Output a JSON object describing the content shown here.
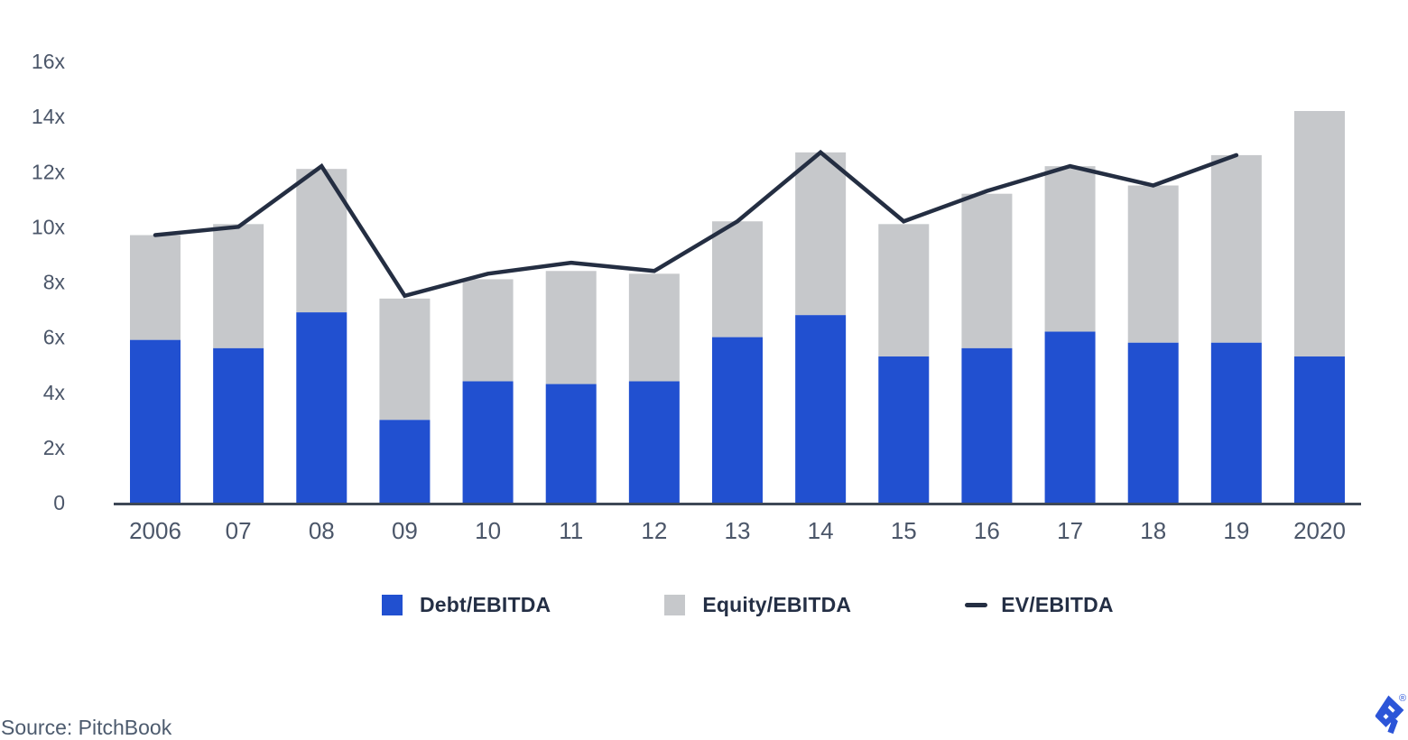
{
  "chart_data": {
    "type": "bar",
    "subtype": "stacked-bar-with-line-overlay",
    "title": "",
    "xlabel": "",
    "ylabel": "",
    "categories": [
      "2006",
      "07",
      "08",
      "09",
      "10",
      "11",
      "12",
      "13",
      "14",
      "15",
      "16",
      "17",
      "18",
      "19",
      "2020"
    ],
    "series": [
      {
        "name": "Debt/EBITDA",
        "type": "bar",
        "stacked": true,
        "color": "#2150d0",
        "values": [
          5.9,
          5.6,
          6.9,
          3.0,
          4.4,
          4.3,
          4.4,
          6.0,
          6.8,
          5.3,
          5.6,
          6.2,
          5.8,
          5.8,
          5.3
        ]
      },
      {
        "name": "Equity/EBITDA",
        "type": "bar",
        "stacked": true,
        "color": "#c6c8cb",
        "values": [
          3.8,
          4.5,
          5.2,
          4.4,
          3.7,
          4.1,
          3.9,
          4.2,
          5.9,
          4.8,
          5.6,
          6.0,
          5.7,
          6.8,
          8.9
        ]
      },
      {
        "name": "EV/EBITDA",
        "type": "line",
        "color": "#242e42",
        "values": [
          9.7,
          10.0,
          12.2,
          7.5,
          8.3,
          8.7,
          8.4,
          10.2,
          12.7,
          10.2,
          11.3,
          12.2,
          11.5,
          12.6,
          null
        ]
      }
    ],
    "stacked_totals": [
      9.7,
      10.1,
      12.1,
      7.4,
      8.1,
      8.4,
      8.3,
      10.2,
      12.7,
      10.1,
      11.2,
      12.2,
      11.5,
      12.6,
      14.2
    ],
    "ylim": [
      0,
      16
    ],
    "y_ticks": [
      "0",
      "2x",
      "4x",
      "6x",
      "8x",
      "10x",
      "12x",
      "14x",
      "16x"
    ],
    "grid": false,
    "legend_position": "bottom",
    "axis_color": "#3e4856",
    "tick_label_color": "#4b5669"
  },
  "source": {
    "label": "Source: PitchBook"
  },
  "logo": {
    "name": "Toptal",
    "registered": "®",
    "color": "#2c55d8"
  }
}
